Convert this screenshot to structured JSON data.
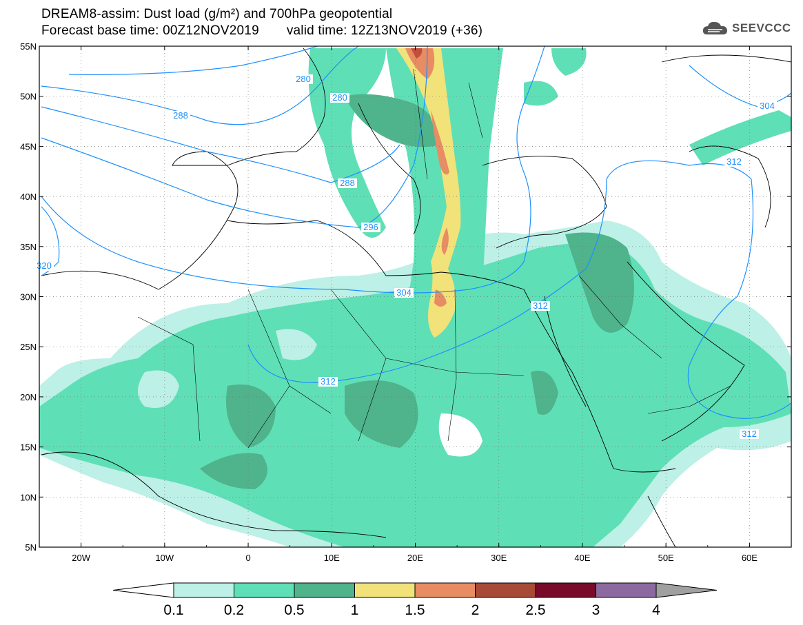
{
  "title": {
    "line1": "DREAM8-assim: Dust load (g/m²) and 700hPa geopotential",
    "base_time": "Forecast base time: 00Z12NOV2019",
    "valid_time": "valid time: 12Z13NOV2019 (+36)"
  },
  "logo": {
    "icon": "cloud-logo-icon",
    "text": "SEEVCCC"
  },
  "axes": {
    "lat_labels": [
      "55N",
      "50N",
      "45N",
      "40N",
      "35N",
      "30N",
      "25N",
      "20N",
      "15N",
      "10N",
      "5N"
    ],
    "lon_labels": [
      "20W",
      "10W",
      "0",
      "10E",
      "20E",
      "30E",
      "40E",
      "50E",
      "60E"
    ],
    "lat_range": [
      5,
      55
    ],
    "lon_range": [
      -25,
      65
    ],
    "grid": "dotted"
  },
  "contour_labels": [
    {
      "text": "280"
    },
    {
      "text": "280"
    },
    {
      "text": "288"
    },
    {
      "text": "288"
    },
    {
      "text": "296"
    },
    {
      "text": "304"
    },
    {
      "text": "304"
    },
    {
      "text": "312"
    },
    {
      "text": "312"
    },
    {
      "text": "312"
    },
    {
      "text": "312"
    },
    {
      "text": "320"
    }
  ],
  "colorbar": {
    "labels": [
      "0.1",
      "0.2",
      "0.5",
      "1",
      "1.5",
      "2",
      "2.5",
      "3",
      "4"
    ],
    "colors": [
      "#bdf0e6",
      "#5fdfb6",
      "#4fb38c",
      "#f2e27a",
      "#e88c64",
      "#a84b36",
      "#7a0a2a",
      "#8c6aa0"
    ],
    "over_color": "#a0a0a0",
    "under_color": "#ffffff"
  },
  "map_colors": {
    "low": "#bdf0e6",
    "med": "#5fdfb6",
    "high": "#4fb38c",
    "yellow": "#f2e27a",
    "orange": "#e88c64",
    "red": "#c0503a",
    "contour": "#1e90ff",
    "coast": "#000000"
  }
}
